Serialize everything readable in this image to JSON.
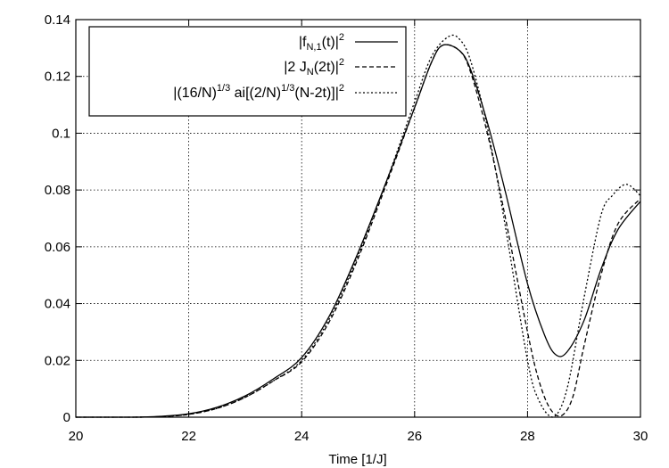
{
  "chart_data": {
    "type": "line",
    "xlabel": "Time [1/J]",
    "ylabel": "",
    "xlim": [
      20,
      30
    ],
    "ylim": [
      0,
      0.14
    ],
    "xticks": [
      "20",
      "22",
      "24",
      "26",
      "28",
      "30"
    ],
    "yticks": [
      "0",
      "0.02",
      "0.04",
      "0.06",
      "0.08",
      "0.1",
      "0.12",
      "0.14"
    ],
    "grid": true,
    "legend_position": "top-left",
    "series": [
      {
        "name": "|f_{N,1}(t)|^2",
        "style": "solid",
        "x": [
          20,
          21,
          21.5,
          22,
          22.5,
          23,
          23.5,
          24,
          24.5,
          25,
          25.5,
          26,
          26.3,
          26.5,
          26.8,
          27,
          27.3,
          27.6,
          28,
          28.3,
          28.5,
          28.7,
          29,
          29.3,
          29.6,
          30
        ],
        "y": [
          0,
          0,
          0.0003,
          0.0012,
          0.0035,
          0.0075,
          0.0135,
          0.021,
          0.036,
          0.058,
          0.083,
          0.109,
          0.125,
          0.131,
          0.129,
          0.122,
          0.103,
          0.08,
          0.047,
          0.029,
          0.022,
          0.023,
          0.034,
          0.052,
          0.066,
          0.076
        ]
      },
      {
        "name": "|2 J_N(2t)|^2",
        "style": "dashed",
        "x": [
          20,
          21,
          21.5,
          22,
          22.5,
          23,
          23.5,
          24,
          24.5,
          25,
          25.5,
          26,
          26.3,
          26.5,
          26.8,
          27,
          27.3,
          27.6,
          28,
          28.2,
          28.4,
          28.6,
          28.8,
          29,
          29.3,
          29.6,
          30
        ],
        "y": [
          0,
          0,
          0.0002,
          0.001,
          0.0031,
          0.007,
          0.0128,
          0.0195,
          0.034,
          0.056,
          0.082,
          0.109,
          0.125,
          0.131,
          0.129,
          0.121,
          0.099,
          0.071,
          0.03,
          0.013,
          0.003,
          0.0005,
          0.007,
          0.025,
          0.05,
          0.068,
          0.077
        ]
      },
      {
        "name": "|(16/N)^{1/3} ai[(2/N)^{1/3}(N-2t)]|^2",
        "style": "dotted",
        "x": [
          20,
          21,
          21.5,
          22,
          22.5,
          23,
          23.5,
          24,
          24.5,
          25,
          25.5,
          26,
          26.3,
          26.6,
          26.8,
          27,
          27.3,
          27.6,
          28,
          28.2,
          28.45,
          28.7,
          29,
          29.3,
          29.5,
          29.75,
          30
        ],
        "y": [
          0,
          0,
          0.0002,
          0.001,
          0.0031,
          0.007,
          0.0128,
          0.02,
          0.035,
          0.057,
          0.083,
          0.111,
          0.127,
          0.134,
          0.133,
          0.125,
          0.101,
          0.068,
          0.02,
          0.006,
          0.0,
          0.01,
          0.042,
          0.071,
          0.078,
          0.082,
          0.078
        ]
      }
    ]
  }
}
